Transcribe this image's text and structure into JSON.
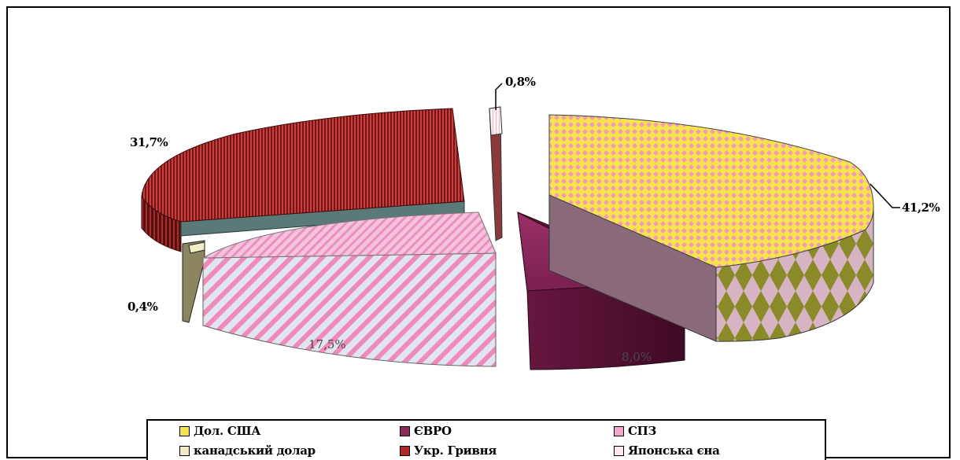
{
  "chart_data": {
    "type": "pie",
    "style": "3d-exploded",
    "title": "",
    "slices": [
      {
        "label": "Дол. США",
        "value": 41.2,
        "value_label": "41,2%",
        "color": "#f5e44a",
        "side_color": "#8a8a28"
      },
      {
        "label": "ЄВРО",
        "value": 8.0,
        "value_label": "8,0%",
        "color": "#8e2a5a",
        "side_color": "#4a1030"
      },
      {
        "label": "СПЗ",
        "value": 17.5,
        "value_label": "17,5%",
        "color": "#f2a6cc",
        "side_color": "#d98ab5"
      },
      {
        "label": "канадський долар",
        "value": 0.4,
        "value_label": "0,4%",
        "color": "#f0ecc8",
        "side_color": "#8b8660"
      },
      {
        "label": "Укр. Гривня",
        "value": 31.7,
        "value_label": "31,7%",
        "color": "#b02a2a",
        "side_color": "#7a1818"
      },
      {
        "label": "Японська єна",
        "value": 0.8,
        "value_label": "0,8%",
        "color": "#fbe8ec",
        "side_color": "#8a3a3a"
      }
    ],
    "legend_position": "bottom"
  }
}
